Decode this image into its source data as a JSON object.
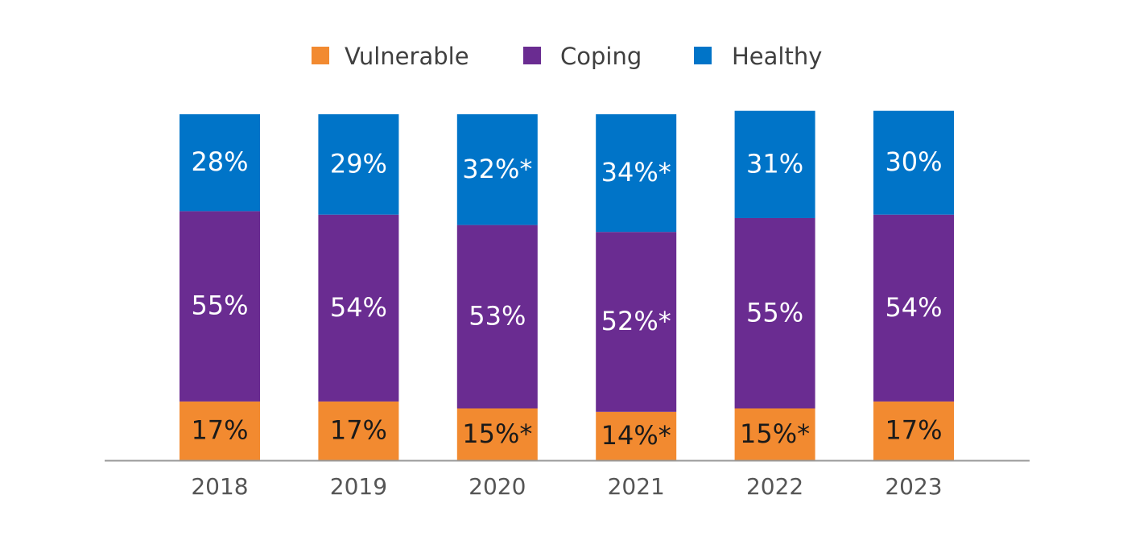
{
  "chart_data": {
    "type": "bar",
    "stacked": true,
    "percent_stacked": true,
    "title": "",
    "xlabel": "",
    "ylabel": "",
    "ylim": [
      0,
      100
    ],
    "grid": false,
    "legend_position": "top-center",
    "categories": [
      "2018",
      "2019",
      "2020",
      "2021",
      "2022",
      "2023"
    ],
    "series": [
      {
        "name": "Vulnerable",
        "color": "#F28A30",
        "label_color": "#1a1a1a",
        "values": [
          17,
          17,
          15,
          14,
          15,
          17
        ],
        "labels": [
          "17%",
          "17%",
          "15%*",
          "14%*",
          "15%*",
          "17%"
        ]
      },
      {
        "name": "Coping",
        "color": "#6A2C91",
        "label_color": "#ffffff",
        "values": [
          55,
          54,
          53,
          52,
          55,
          54
        ],
        "labels": [
          "55%",
          "54%",
          "53%",
          "52%*",
          "55%",
          "54%"
        ]
      },
      {
        "name": "Healthy",
        "color": "#0074C8",
        "label_color": "#ffffff",
        "values": [
          28,
          29,
          32,
          34,
          31,
          30
        ],
        "labels": [
          "28%",
          "29%",
          "32%*",
          "34%*",
          "31%",
          "30%"
        ]
      }
    ],
    "axis_color": "#999999"
  }
}
